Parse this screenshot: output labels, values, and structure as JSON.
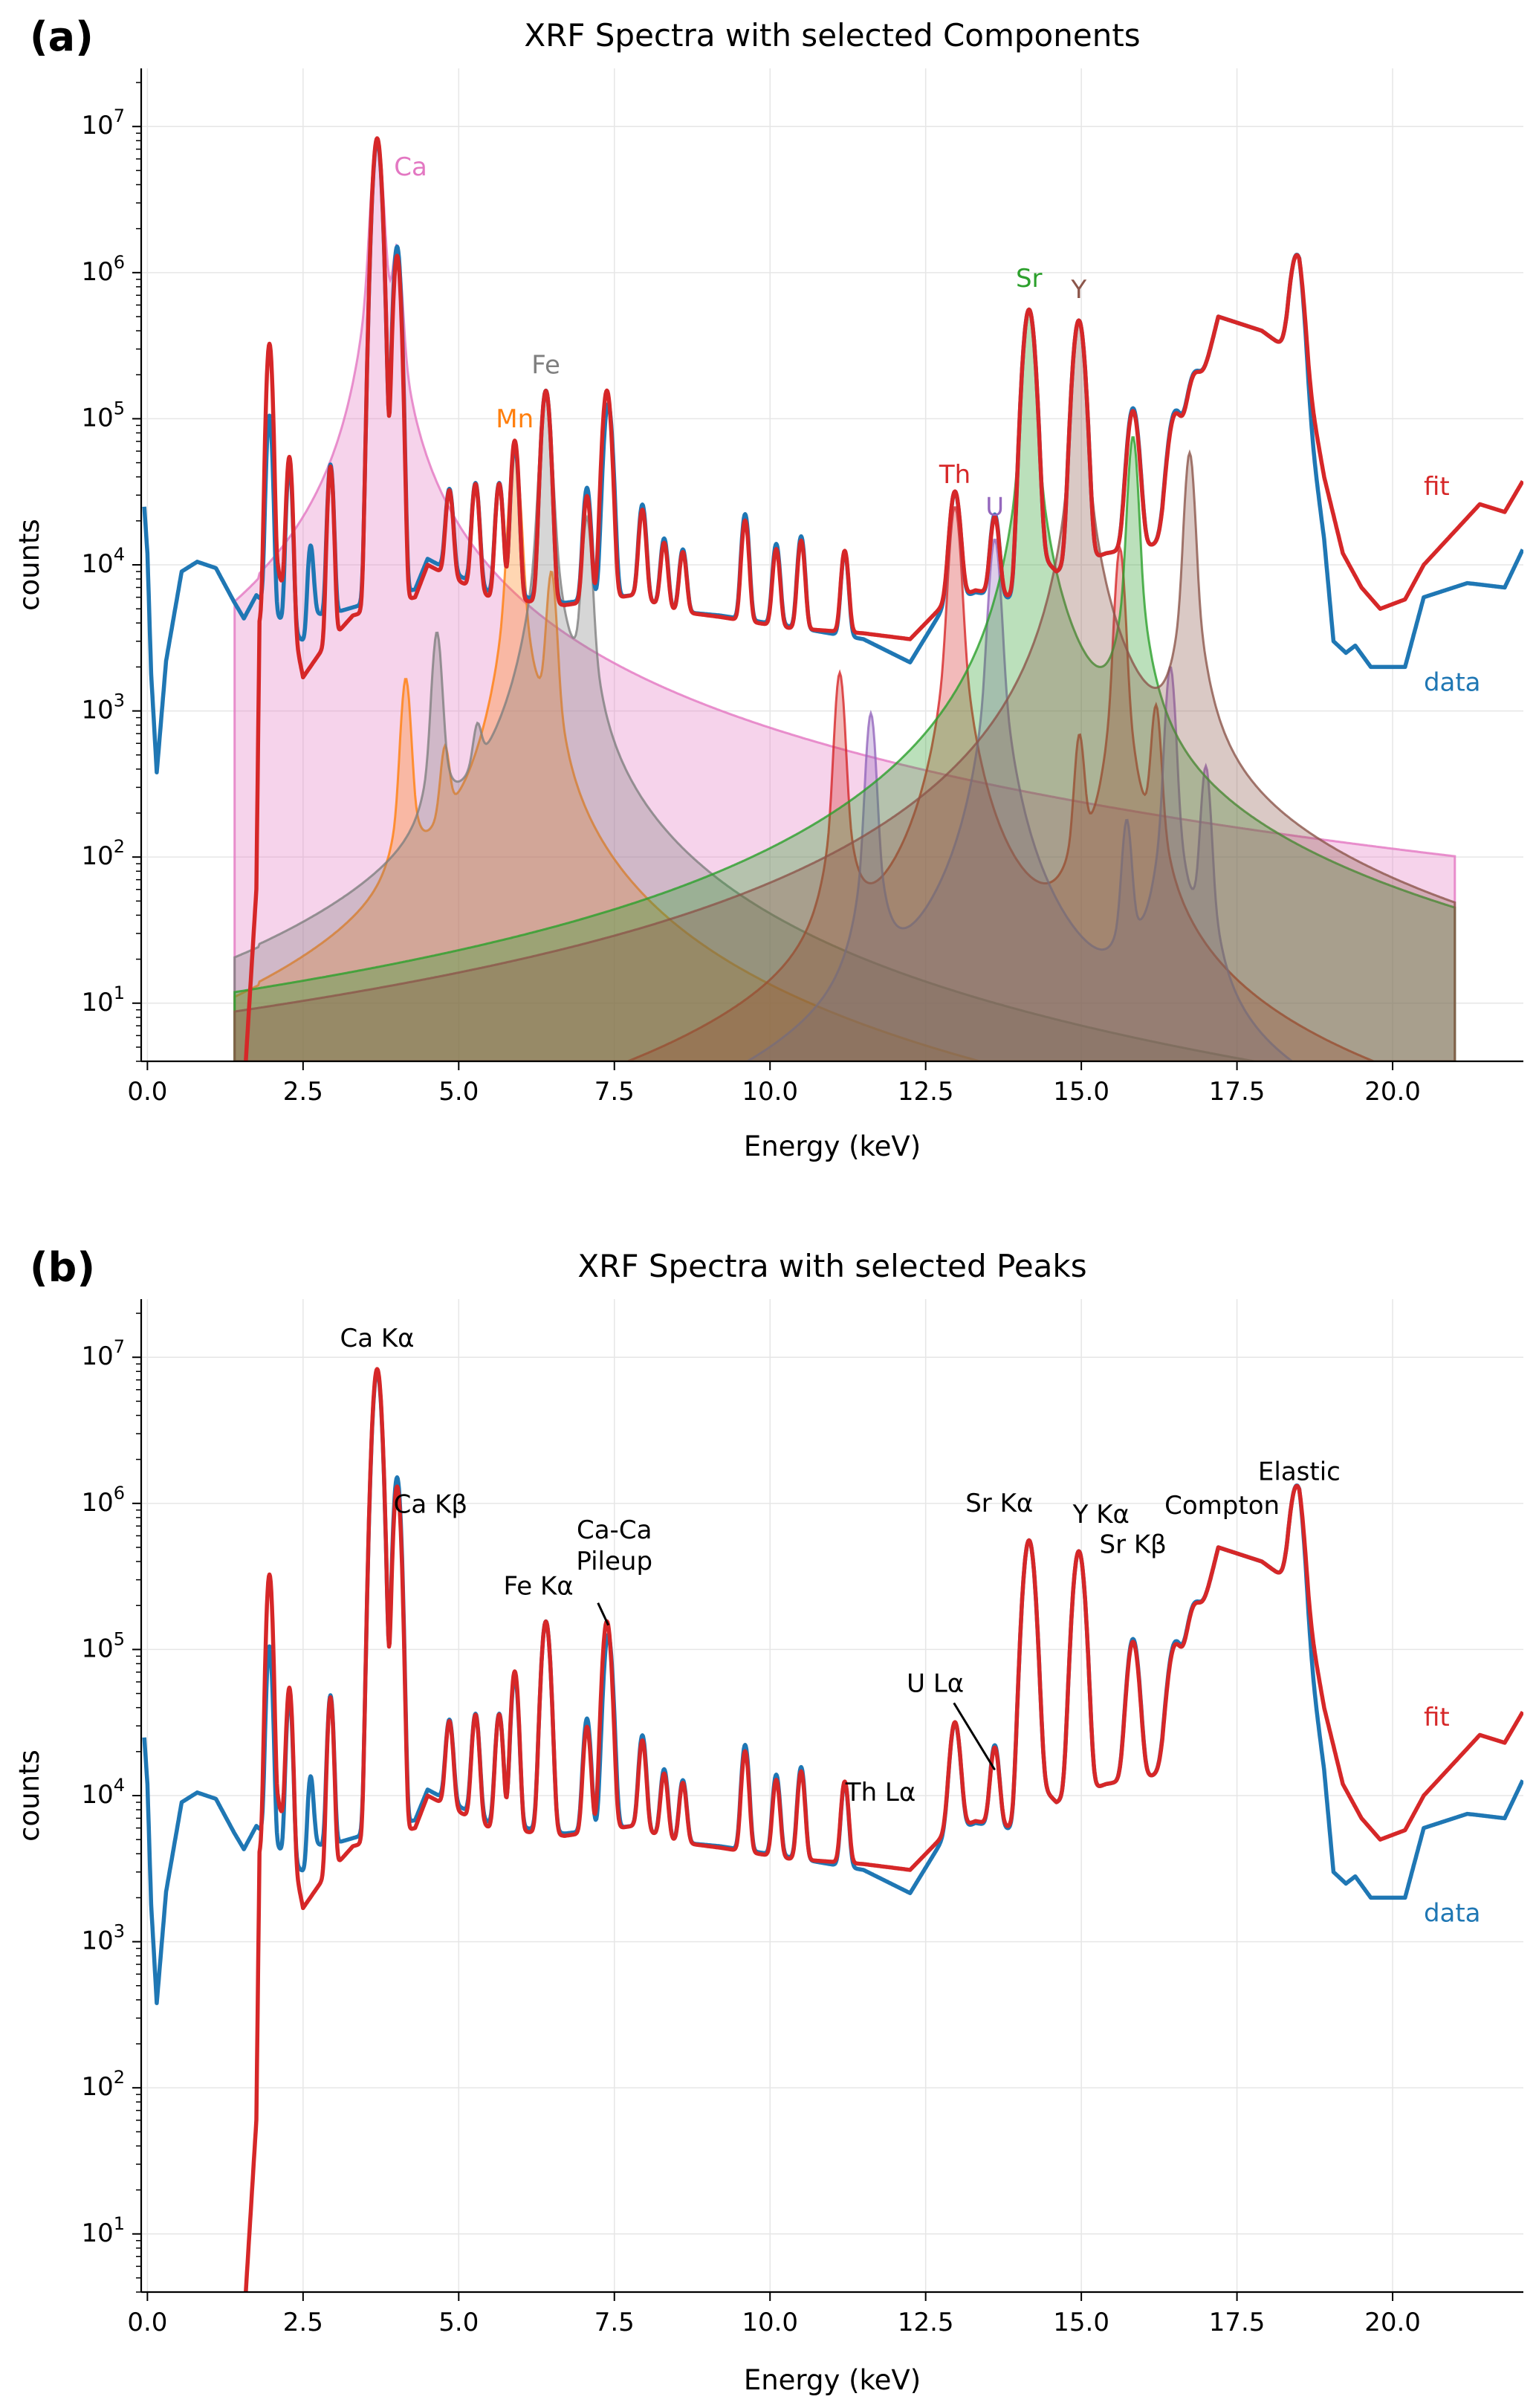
{
  "chart_data": [
    {
      "panel": "(a)",
      "type": "line",
      "title": "XRF Spectra with selected Components",
      "xlabel": "Energy (keV)",
      "ylabel": "counts",
      "yscale": "log",
      "xlim": [
        -0.1,
        22.1
      ],
      "ylim": [
        4,
        25000000
      ],
      "grid": true,
      "xticks": [
        "0.0",
        "2.5",
        "5.0",
        "7.5",
        "10.0",
        "12.5",
        "15.0",
        "17.5",
        "20.0"
      ],
      "yticks": [
        "10^1",
        "10^2",
        "10^3",
        "10^4",
        "10^5",
        "10^6",
        "10^7"
      ],
      "series": [
        {
          "name": "data",
          "color": "#1f77b4"
        },
        {
          "name": "fit",
          "color": "#d62728"
        }
      ],
      "components": [
        {
          "name": "Ca",
          "color": "#e377c2",
          "peaks": [
            [
              3.69,
              8300000
            ],
            [
              4.01,
              1300000
            ]
          ]
        },
        {
          "name": "Mn",
          "color": "#ff7f0e",
          "peaks": [
            [
              5.9,
              60000
            ],
            [
              6.49,
              8500
            ],
            [
              4.15,
              1600
            ],
            [
              4.78,
              400
            ]
          ]
        },
        {
          "name": "Fe",
          "color": "#7f7f7f",
          "peaks": [
            [
              6.4,
              140000
            ],
            [
              7.06,
              20000
            ],
            [
              4.65,
              3300
            ],
            [
              5.3,
              400
            ]
          ]
        },
        {
          "name": "Th",
          "color": "#d62728",
          "peaks": [
            [
              12.97,
              25000
            ],
            [
              15.62,
              13000
            ],
            [
              16.2,
              1000
            ],
            [
              11.12,
              1800
            ],
            [
              14.97,
              600
            ]
          ]
        },
        {
          "name": "U",
          "color": "#9467bd",
          "peaks": [
            [
              13.61,
              15000
            ],
            [
              16.43,
              2000
            ],
            [
              17.0,
              400
            ],
            [
              11.62,
              950
            ],
            [
              15.73,
              160
            ]
          ]
        },
        {
          "name": "Sr",
          "color": "#2ca02c",
          "peaks": [
            [
              14.16,
              550000
            ],
            [
              15.83,
              75000
            ]
          ]
        },
        {
          "name": "Y",
          "color": "#8c564b",
          "peaks": [
            [
              14.96,
              460000
            ],
            [
              16.74,
              58000
            ]
          ]
        }
      ]
    },
    {
      "panel": "(b)",
      "type": "line",
      "title": "XRF Spectra with selected Peaks",
      "xlabel": "Energy (keV)",
      "ylabel": "counts",
      "yscale": "log",
      "xlim": [
        -0.1,
        22.1
      ],
      "ylim": [
        4,
        25000000
      ],
      "grid": true,
      "xticks": [
        "0.0",
        "2.5",
        "5.0",
        "7.5",
        "10.0",
        "12.5",
        "15.0",
        "17.5",
        "20.0"
      ],
      "yticks": [
        "10^1",
        "10^2",
        "10^3",
        "10^4",
        "10^5",
        "10^6",
        "10^7"
      ],
      "series": [
        {
          "name": "data",
          "color": "#1f77b4"
        },
        {
          "name": "fit",
          "color": "#d62728"
        }
      ],
      "annotations": [
        {
          "lines": [
            "Ca Kα"
          ],
          "x": 3.69,
          "y": 8300000
        },
        {
          "lines": [
            "Ca Kβ"
          ],
          "x": 4.01,
          "y": 1300000
        },
        {
          "lines": [
            "Fe Kα"
          ],
          "x": 6.4,
          "y": 140000
        },
        {
          "lines": [
            "Ca-Ca",
            "Pileup"
          ],
          "x": 7.38,
          "y": 150000
        },
        {
          "lines": [
            "Th Lα"
          ],
          "x": 12.97,
          "y": 25000
        },
        {
          "lines": [
            "U  Lα"
          ],
          "x": 13.61,
          "y": 15000
        },
        {
          "lines": [
            "Sr Kα"
          ],
          "x": 14.16,
          "y": 550000
        },
        {
          "lines": [
            "Y Kα"
          ],
          "x": 14.96,
          "y": 460000
        },
        {
          "lines": [
            "Sr Kβ"
          ],
          "x": 15.83,
          "y": 100000
        },
        {
          "lines": [
            "Compton"
          ],
          "x": 17.5,
          "y": 500000
        },
        {
          "lines": [
            "Elastic"
          ],
          "x": 18.5,
          "y": 850000
        }
      ]
    }
  ],
  "spectrum": {
    "data_knots": [
      [
        -0.05,
        25000
      ],
      [
        0,
        12000
      ],
      [
        0.06,
        1800
      ],
      [
        0.15,
        380
      ],
      [
        0.3,
        2200
      ],
      [
        0.55,
        9000
      ],
      [
        0.8,
        10500
      ],
      [
        1.1,
        9500
      ],
      [
        1.4,
        5500
      ],
      [
        1.55,
        4300
      ],
      [
        1.75,
        6200
      ],
      [
        2.5,
        3000
      ],
      [
        2.55,
        2800
      ],
      [
        2.7,
        4700
      ],
      [
        2.85,
        4500
      ],
      [
        4.3,
        6800
      ],
      [
        4.5,
        11000
      ],
      [
        5.5,
        6500
      ],
      [
        6.7,
        5500
      ],
      [
        7.8,
        6200
      ],
      [
        8.5,
        4800
      ],
      [
        9.2,
        4500
      ],
      [
        10.3,
        3800
      ],
      [
        11.5,
        3100
      ],
      [
        12.25,
        2150
      ],
      [
        12.8,
        5200
      ],
      [
        13.3,
        6500
      ],
      [
        13.9,
        5800
      ],
      [
        14.4,
        11000
      ],
      [
        14.6,
        9000
      ],
      [
        15.4,
        12000
      ],
      [
        16.3,
        14000
      ],
      [
        17.2,
        500000
      ],
      [
        17.9,
        400000
      ],
      [
        18.3,
        300000
      ],
      [
        18.5,
        500000
      ],
      [
        18.65,
        100000
      ],
      [
        18.9,
        15000
      ],
      [
        19.05,
        3000
      ],
      [
        19.25,
        2500
      ],
      [
        19.4,
        2800
      ],
      [
        19.65,
        2000
      ],
      [
        20.2,
        2000
      ],
      [
        20.5,
        6000
      ],
      [
        21.2,
        7500
      ],
      [
        21.8,
        7000
      ],
      [
        22.1,
        13000
      ]
    ],
    "fit_knots": [
      [
        1.58,
        4
      ],
      [
        1.75,
        60
      ],
      [
        1.8,
        4000
      ],
      [
        2.1,
        9000
      ],
      [
        2.3,
        4500
      ],
      [
        2.5,
        1700
      ],
      [
        2.8,
        2600
      ],
      [
        3.3,
        4500
      ],
      [
        4.3,
        6000
      ],
      [
        4.5,
        10000
      ],
      [
        5.5,
        6000
      ],
      [
        6.7,
        5300
      ],
      [
        7.8,
        6200
      ],
      [
        8.5,
        4800
      ],
      [
        9.2,
        4400
      ],
      [
        10.3,
        3700
      ],
      [
        11.5,
        3400
      ],
      [
        12.25,
        3100
      ],
      [
        12.8,
        5400
      ],
      [
        13.3,
        6700
      ],
      [
        13.9,
        6000
      ],
      [
        14.4,
        11000
      ],
      [
        14.6,
        9000
      ],
      [
        15.4,
        12000
      ],
      [
        16.3,
        14000
      ],
      [
        17.2,
        500000
      ],
      [
        17.9,
        400000
      ],
      [
        18.3,
        300000
      ],
      [
        18.5,
        500000
      ],
      [
        18.65,
        160000
      ],
      [
        18.9,
        40000
      ],
      [
        19.2,
        12000
      ],
      [
        19.5,
        7000
      ],
      [
        19.8,
        5000
      ],
      [
        20.2,
        5800
      ],
      [
        20.5,
        10000
      ],
      [
        21.0,
        17000
      ],
      [
        21.4,
        26000
      ],
      [
        21.8,
        23000
      ],
      [
        22.1,
        38000
      ]
    ],
    "data_peaks": [
      [
        1.96,
        100000,
        0.04
      ],
      [
        2.28,
        45000,
        0.04
      ],
      [
        2.62,
        10000,
        0.04
      ],
      [
        2.94,
        44000,
        0.04
      ],
      [
        3.69,
        8000000,
        0.06
      ],
      [
        4.01,
        1500000,
        0.05
      ],
      [
        4.85,
        24000,
        0.05
      ],
      [
        5.27,
        29000,
        0.05
      ],
      [
        5.65,
        30000,
        0.05
      ],
      [
        5.9,
        60000,
        0.05
      ],
      [
        6.4,
        150000,
        0.06
      ],
      [
        7.06,
        28000,
        0.05
      ],
      [
        7.4,
        120000,
        0.06
      ],
      [
        7.95,
        20000,
        0.05
      ],
      [
        8.3,
        10000,
        0.05
      ],
      [
        8.6,
        8000,
        0.05
      ],
      [
        9.6,
        18000,
        0.05
      ],
      [
        10.1,
        10000,
        0.05
      ],
      [
        10.5,
        12000,
        0.05
      ],
      [
        11.2,
        9000,
        0.05
      ],
      [
        12.97,
        26000,
        0.07
      ],
      [
        13.61,
        16000,
        0.06
      ],
      [
        14.16,
        550000,
        0.08
      ],
      [
        14.96,
        460000,
        0.08
      ],
      [
        15.83,
        105000,
        0.08
      ],
      [
        16.5,
        80000,
        0.1
      ],
      [
        16.8,
        100000,
        0.1
      ],
      [
        18.45,
        880000,
        0.09
      ]
    ],
    "fit_peaks": [
      [
        1.96,
        320000,
        0.04
      ],
      [
        2.28,
        50000,
        0.04
      ],
      [
        2.94,
        44000,
        0.04
      ],
      [
        3.69,
        8300000,
        0.06
      ],
      [
        4.01,
        1300000,
        0.05
      ],
      [
        4.85,
        24000,
        0.05
      ],
      [
        5.27,
        29000,
        0.05
      ],
      [
        5.65,
        30000,
        0.05
      ],
      [
        5.9,
        65000,
        0.05
      ],
      [
        6.4,
        150000,
        0.06
      ],
      [
        7.06,
        24000,
        0.05
      ],
      [
        7.38,
        150000,
        0.06
      ],
      [
        7.95,
        18000,
        0.05
      ],
      [
        8.3,
        9000,
        0.05
      ],
      [
        8.6,
        7500,
        0.05
      ],
      [
        9.6,
        16000,
        0.05
      ],
      [
        10.1,
        9000,
        0.05
      ],
      [
        10.5,
        11000,
        0.05
      ],
      [
        11.2,
        9000,
        0.05
      ],
      [
        12.97,
        26000,
        0.07
      ],
      [
        13.61,
        15000,
        0.06
      ],
      [
        14.16,
        550000,
        0.08
      ],
      [
        14.96,
        460000,
        0.08
      ],
      [
        15.83,
        100000,
        0.08
      ],
      [
        16.5,
        75000,
        0.1
      ],
      [
        16.8,
        95000,
        0.1
      ],
      [
        18.45,
        870000,
        0.09
      ]
    ]
  },
  "labels": {
    "panel_a": "(a)",
    "panel_b": "(b)",
    "fit": "fit",
    "data": "data"
  }
}
